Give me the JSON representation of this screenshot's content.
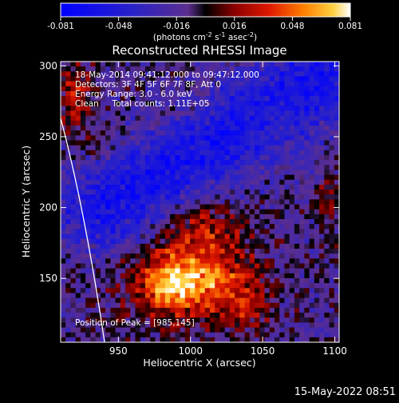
{
  "colorbar": {
    "ticks": [
      "-0.081",
      "-0.048",
      "-0.016",
      "0.016",
      "0.048",
      "0.081"
    ],
    "units_prefix": "(photons cm",
    "units_exp1": "-2",
    "units_mid": " s",
    "units_exp2": "-1",
    "units_mid2": " asec",
    "units_exp3": "-2",
    "units_suffix": ")"
  },
  "chart_data": {
    "type": "heatmap",
    "title": "Reconstructed RHESSI Image",
    "xlabel": "Heliocentric X (arcsec)",
    "ylabel": "Heliocentric Y (arcsec)",
    "xlim": [
      910,
      1103
    ],
    "ylim": [
      105,
      303
    ],
    "x_ticks": [
      950,
      1000,
      1050,
      1100
    ],
    "y_ticks": [
      150,
      200,
      250,
      300
    ],
    "color_range": [
      -0.081,
      0.081
    ],
    "info_lines": [
      "18-May-2014 09:41:12.000 to 09:47:12.000",
      "Detectors: 3F 4F 5F 6F 7F 8F, Att 0",
      "Energy Range: 3.0 - 6.0 keV",
      "Clean     Total counts: 1.11E+05"
    ],
    "peak_label": "Position of Peak = [985,145]",
    "peak": [
      985,
      145
    ],
    "sources": [
      {
        "x": 1000,
        "y": 150,
        "amp": 0.075,
        "sx": 28,
        "sy": 20
      },
      {
        "x": 985,
        "y": 145,
        "amp": 0.03,
        "sx": 10,
        "sy": 8
      },
      {
        "x": 1010,
        "y": 190,
        "amp": 0.03,
        "sx": 18,
        "sy": 12
      },
      {
        "x": 1040,
        "y": 130,
        "amp": 0.025,
        "sx": 12,
        "sy": 12
      },
      {
        "x": 920,
        "y": 280,
        "amp": 0.035,
        "sx": 8,
        "sy": 20
      },
      {
        "x": 935,
        "y": 240,
        "amp": 0.01,
        "sx": 8,
        "sy": 10
      },
      {
        "x": 1095,
        "y": 205,
        "amp": 0.02,
        "sx": 6,
        "sy": 15
      },
      {
        "x": 1060,
        "y": 265,
        "amp": 0.012,
        "sx": 10,
        "sy": 10
      },
      {
        "x": 1000,
        "y": 270,
        "amp": 0.008,
        "sx": 12,
        "sy": 10
      }
    ],
    "negative_band": {
      "amp": -0.05,
      "x0": 940,
      "y0": 200,
      "x1": 1090,
      "y1": 290,
      "width": 22
    }
  },
  "footer": {
    "date": "15-May-2022 08:51"
  }
}
